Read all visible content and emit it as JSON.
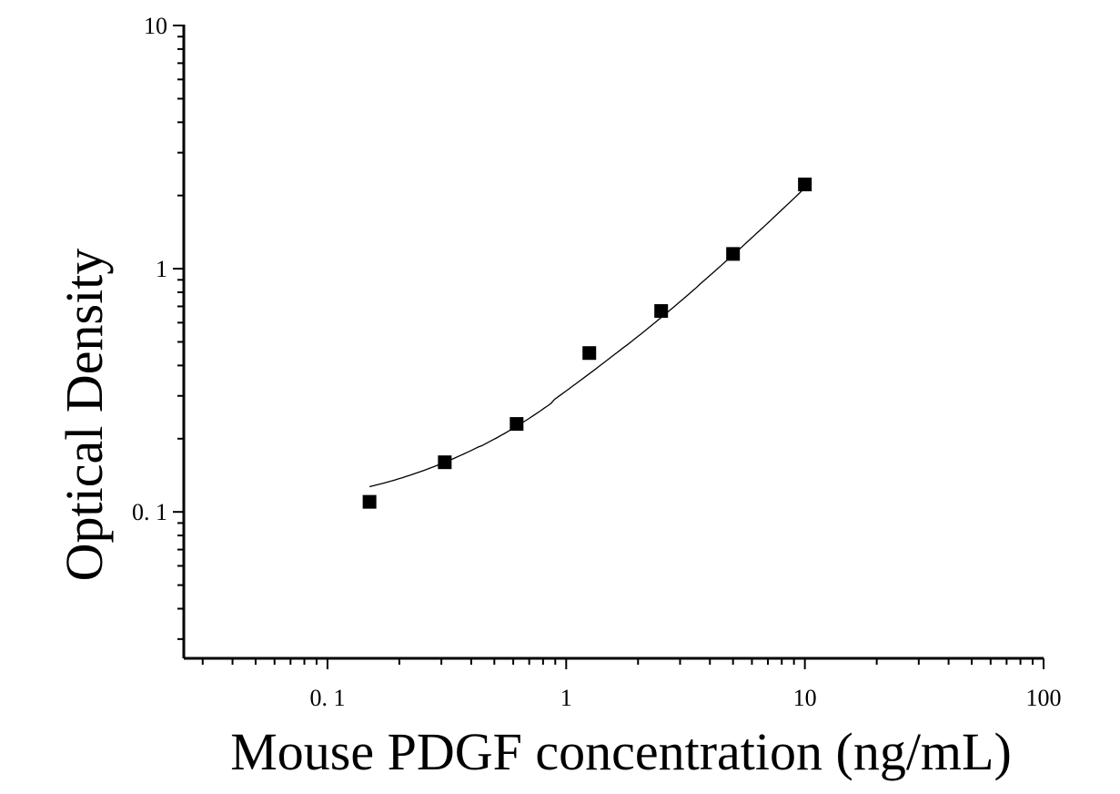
{
  "chart_data": {
    "type": "scatter",
    "title": "",
    "xlabel": "Mouse PDGF concentration (ng/mL)",
    "ylabel": "Optical Density",
    "x_scale": "log",
    "y_scale": "log",
    "xlim": [
      0.025,
      100
    ],
    "ylim": [
      0.025,
      10
    ],
    "x_ticks": [
      {
        "value": 0.1,
        "label": "0. 1"
      },
      {
        "value": 1,
        "label": "1"
      },
      {
        "value": 10,
        "label": "10"
      },
      {
        "value": 100,
        "label": "100"
      }
    ],
    "y_ticks": [
      {
        "value": 0.1,
        "label": "0. 1"
      },
      {
        "value": 1,
        "label": "1"
      },
      {
        "value": 10,
        "label": "10"
      }
    ],
    "grid": false,
    "legend": "none",
    "series": [
      {
        "marker": "square",
        "color": "#000000",
        "x": [
          0.15,
          0.31,
          0.62,
          1.25,
          2.5,
          5,
          10
        ],
        "y": [
          0.11,
          0.16,
          0.23,
          0.45,
          0.67,
          1.15,
          2.22
        ]
      }
    ],
    "fit_curve": {
      "color": "#000000",
      "x": [
        0.15,
        0.31,
        0.62,
        1.25,
        2.5,
        5,
        10
      ],
      "y": [
        0.127,
        0.16,
        0.225,
        0.37,
        0.63,
        1.14,
        2.15
      ]
    }
  }
}
